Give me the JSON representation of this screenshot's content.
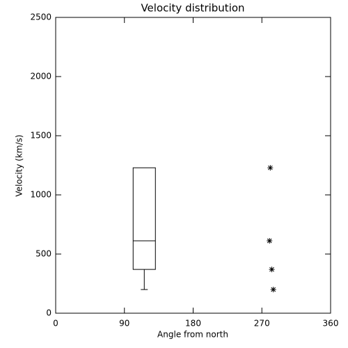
{
  "chart_data": {
    "type": "box",
    "title": "Velocity distribution",
    "xlabel": "Angle from north",
    "ylabel": "Velocity (km/s)",
    "xlim": [
      0,
      360
    ],
    "xticks": [
      0,
      90,
      180,
      270,
      360
    ],
    "ylim": [
      0,
      2500
    ],
    "yticks": [
      0,
      500,
      1000,
      1500,
      2000,
      2500
    ],
    "boxes": [
      {
        "x": 116,
        "whisker_low": 200,
        "q1": 370,
        "median": 612,
        "q3": 1229
      }
    ],
    "points": {
      "marker": "asterisk",
      "x": [
        281,
        280,
        283,
        285
      ],
      "values": [
        1229,
        612,
        370,
        200
      ]
    }
  }
}
